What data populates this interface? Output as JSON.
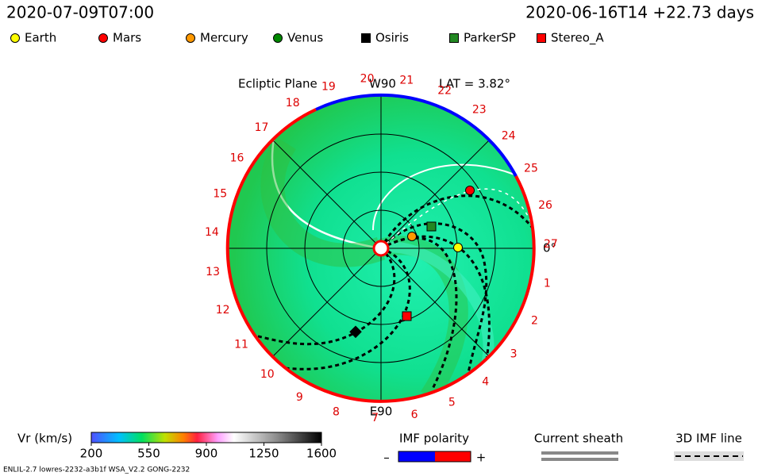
{
  "header": {
    "left": "2020-07-09T07:00",
    "right": "2020-06-16T14 +22.73 days"
  },
  "legend": [
    {
      "label": "Earth",
      "color": "#ffff00",
      "shape": "circle"
    },
    {
      "label": "Mars",
      "color": "#ff0000",
      "shape": "circle"
    },
    {
      "label": "Mercury",
      "color": "#ff9900",
      "shape": "circle"
    },
    {
      "label": "Venus",
      "color": "#008800",
      "shape": "circle"
    },
    {
      "label": "Osiris",
      "color": "#000000",
      "shape": "square"
    },
    {
      "label": "ParkerSP",
      "color": "#228822",
      "shape": "square"
    },
    {
      "label": "Stereo_A",
      "color": "#ff0000",
      "shape": "square"
    }
  ],
  "plot": {
    "title": "Ecliptic Plane",
    "top_label": "W90",
    "bottom_label": "E90",
    "right_label": "0°",
    "lat_label": "LAT = 3.82°",
    "sectors": [
      "1",
      "2",
      "3",
      "4",
      "5",
      "6",
      "7",
      "8",
      "9",
      "10",
      "11",
      "12",
      "13",
      "14",
      "15",
      "16",
      "17",
      "18",
      "19",
      "20",
      "21",
      "22",
      "23",
      "24",
      "25",
      "26",
      "27"
    ]
  },
  "colorbar": {
    "label": "Vr (km/s)",
    "range": [
      200,
      1600
    ],
    "ticks": [
      200,
      550,
      900,
      1250,
      1600
    ]
  },
  "imf_polarity": {
    "label": "IMF polarity",
    "minus": "–",
    "plus": "+"
  },
  "current_sheath": {
    "label": "Current sheath"
  },
  "imf_line": {
    "label": "3D IMF line"
  },
  "footer": "ENLIL-2.7 lowres-2232-a3b1f WSA_V2.2 GONG-2232"
}
